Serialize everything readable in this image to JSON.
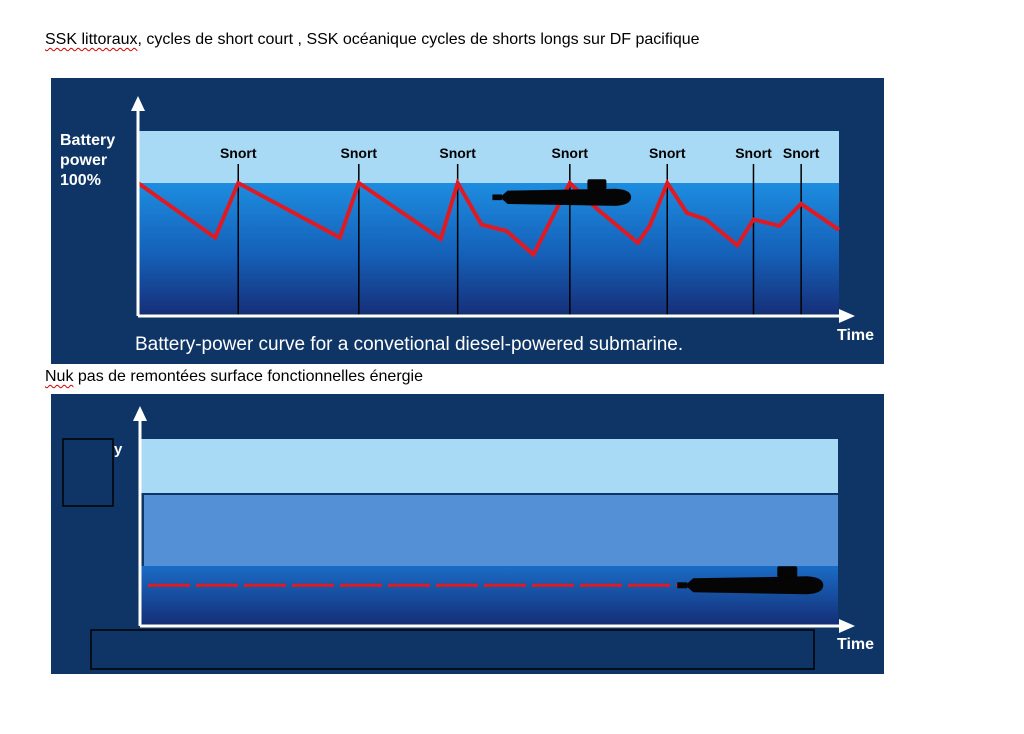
{
  "headings": {
    "line1": {
      "squiggle": "SSK littoraux",
      "rest": ", cycles de short court , SSK océanique cycles de shorts longs sur DF pacifique"
    },
    "line2": {
      "squiggle": "Nuk",
      "rest": " pas de remontées surface fonctionnelles énergie"
    }
  },
  "colors": {
    "panel": "#0f3566",
    "band_light": "#a8daf6",
    "band_mid": "#5390d6",
    "curve": "#e01a22",
    "axis": "#ffffff",
    "submarine": "#050505"
  },
  "chart_data": [
    {
      "type": "line",
      "title": "",
      "ylabel": "Battery power 100%",
      "ylabel_lines": [
        "Battery",
        "power",
        "100%"
      ],
      "xlabel": "Time",
      "caption": "Battery-power curve for a convetional diesel-powered submarine.",
      "xlim": [
        0,
        100
      ],
      "ylim": [
        0,
        100
      ],
      "legend": "none",
      "grid": false,
      "snort_label": "Snort",
      "snorts": [
        14.3,
        31.5,
        45.6,
        61.6,
        75.5,
        87.8,
        94.6
      ],
      "series": [
        {
          "x": [
            0,
            11,
            14.3,
            28.8,
            31.5,
            43.2,
            45.6,
            49,
            52.6,
            56.4,
            61.6,
            65.5,
            71.3,
            73,
            75.5,
            78.3,
            81,
            85.5,
            87.8,
            91.5,
            94.6,
            100
          ],
          "y": [
            100,
            58,
            100,
            58,
            100,
            57,
            100,
            68,
            63,
            45,
            100,
            80,
            54,
            67,
            100,
            77,
            72,
            52,
            72,
            67,
            84,
            64
          ]
        }
      ],
      "submarine_marker": {
        "x": 61.4,
        "y": 89
      }
    },
    {
      "type": "line",
      "title": "",
      "ylabel": "",
      "xlabel": "Time",
      "xlim": [
        0,
        100
      ],
      "ylim": [
        0,
        100
      ],
      "legend": "none",
      "grid": false,
      "series": [
        {
          "x": [
            0,
            77
          ],
          "y": [
            30,
            30
          ],
          "dash": "long-dash"
        }
      ],
      "submarine_marker": {
        "x": 88.3,
        "y": 30
      },
      "label_fragment": "y",
      "redaction_boxes": [
        "ylabel-cover",
        "caption-cover"
      ]
    }
  ]
}
